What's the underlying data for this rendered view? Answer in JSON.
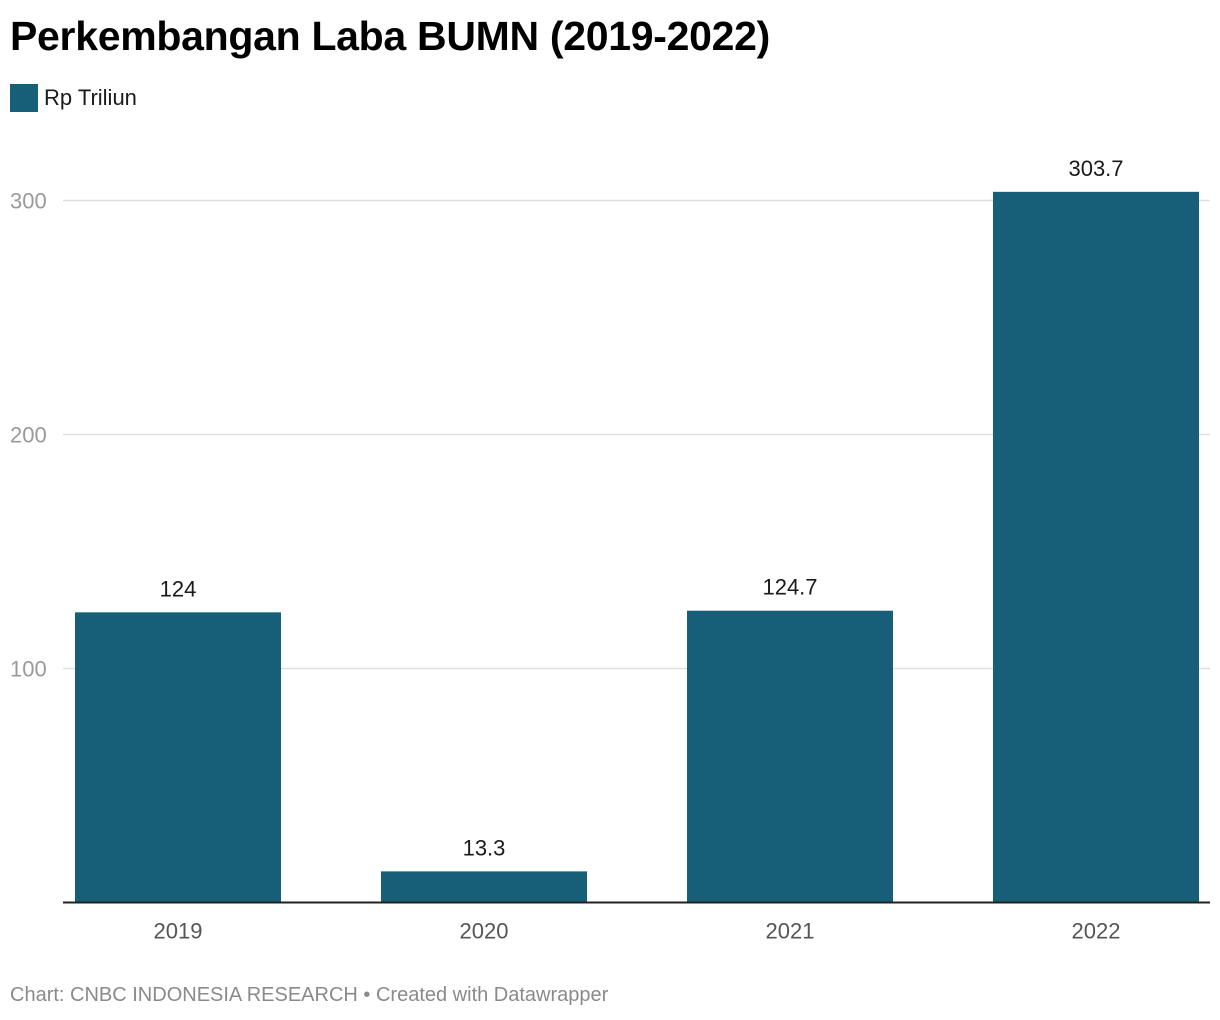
{
  "title": "Perkembangan Laba BUMN (2019-2022)",
  "legend": {
    "label": "Rp Triliun",
    "color": "#175f79"
  },
  "footer": {
    "source": "Chart: CNBC INDONESIA RESEARCH • Created with Datawrapper"
  },
  "chart_data": {
    "type": "bar",
    "title": "Perkembangan Laba BUMN (2019-2022)",
    "categories": [
      "2019",
      "2020",
      "2021",
      "2022"
    ],
    "series": [
      {
        "name": "Rp Triliun",
        "values": [
          124,
          13.3,
          124.7,
          303.7
        ],
        "color": "#175f79"
      }
    ],
    "value_labels": [
      "124",
      "13.3",
      "124.7",
      "303.7"
    ],
    "ylim": [
      0,
      320
    ],
    "yticks": [
      100,
      200,
      300
    ],
    "grid": true,
    "legend_position": "top-left",
    "xlabel": "",
    "ylabel": ""
  }
}
